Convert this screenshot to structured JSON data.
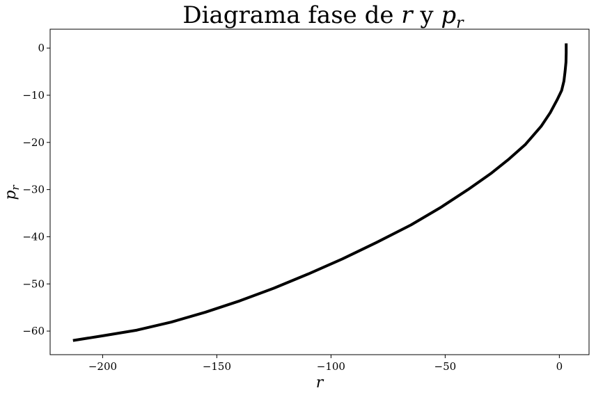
{
  "chart_data": {
    "type": "line",
    "title": {
      "prefix": "Diagrama fase de ",
      "var1": "r",
      "middle": " y ",
      "var2": "p",
      "var2_sub": "r"
    },
    "xlabel": "r",
    "ylabel": {
      "base": "p",
      "sub": "r"
    },
    "xlim": [
      -223,
      13
    ],
    "ylim": [
      -65,
      4
    ],
    "xticks": [
      -200,
      -150,
      -100,
      -50,
      0
    ],
    "yticks": [
      0,
      -10,
      -20,
      -30,
      -40,
      -50,
      -60
    ],
    "tick_labels_x": [
      "−200",
      "−150",
      "−100",
      "−50",
      "0"
    ],
    "tick_labels_y": [
      "0",
      "−10",
      "−20",
      "−30",
      "−40",
      "−50",
      "−60"
    ],
    "grid": false,
    "series": [
      {
        "color": "#000000",
        "x": [
          3.0,
          3.0,
          2.9,
          2.5,
          2.0,
          1.0,
          -1.0,
          -4.0,
          -8.0,
          -15.0,
          -22.0,
          -30.0,
          -40.0,
          -52.0,
          -65.0,
          -80.0,
          -95.0,
          -110.0,
          -125.0,
          -140.0,
          -155.0,
          -170.0,
          -185.0,
          -200.0,
          -213.0
        ],
        "y": [
          1.0,
          -1.0,
          -3.0,
          -5.0,
          -7.0,
          -9.0,
          -11.0,
          -13.7,
          -16.6,
          -20.5,
          -23.5,
          -26.6,
          -30.0,
          -33.8,
          -37.5,
          -41.2,
          -44.7,
          -47.9,
          -50.9,
          -53.6,
          -56.0,
          -58.1,
          -59.8,
          -61.0,
          -62.0
        ]
      }
    ]
  }
}
